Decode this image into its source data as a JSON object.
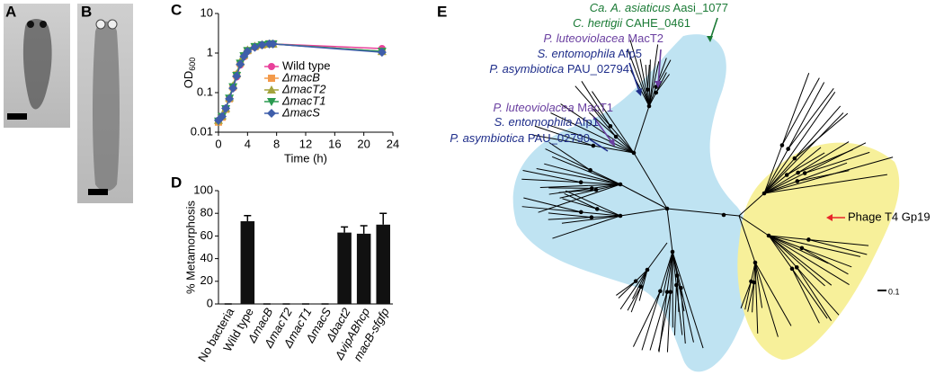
{
  "panels": {
    "a": "A",
    "b": "B",
    "c": "C",
    "d": "D",
    "e": "E"
  },
  "chart_data": [
    {
      "type": "line",
      "log_scale": "y",
      "ylabel": "OD",
      "ylabel_sub": "600",
      "xlabel": "Time (h)",
      "x": [
        0,
        0.5,
        1,
        1.5,
        2,
        2.5,
        3,
        3.5,
        4,
        5,
        6,
        7,
        7.5,
        22.5
      ],
      "xlim": [
        0,
        24
      ],
      "xticks": [
        0,
        4,
        8,
        12,
        16,
        20,
        24
      ],
      "ylim": [
        0.01,
        10
      ],
      "yticks": [
        0.01,
        0.1,
        1,
        10
      ],
      "series": [
        {
          "name": "Wild type",
          "color": "#e8409a",
          "marker": "circle",
          "values": [
            0.02,
            0.025,
            0.04,
            0.07,
            0.13,
            0.25,
            0.5,
            0.8,
            1.1,
            1.4,
            1.6,
            1.7,
            1.7,
            1.3
          ]
        },
        {
          "name": "ΔmacB",
          "color": "#f39a4a",
          "marker": "square",
          "values": [
            0.018,
            0.024,
            0.038,
            0.07,
            0.14,
            0.28,
            0.55,
            0.85,
            1.15,
            1.45,
            1.6,
            1.7,
            1.7,
            1.1
          ]
        },
        {
          "name": "ΔmacT2",
          "color": "#a3a33c",
          "marker": "triangle-up",
          "values": [
            0.02,
            0.026,
            0.04,
            0.075,
            0.15,
            0.3,
            0.6,
            0.9,
            1.2,
            1.5,
            1.65,
            1.7,
            1.7,
            1.1
          ]
        },
        {
          "name": "ΔmacT1",
          "color": "#2a9a50",
          "marker": "triangle-down",
          "values": [
            0.019,
            0.025,
            0.039,
            0.072,
            0.14,
            0.27,
            0.55,
            0.85,
            1.15,
            1.45,
            1.6,
            1.7,
            1.7,
            1.1
          ]
        },
        {
          "name": "ΔmacS",
          "color": "#3f5eaa",
          "marker": "diamond",
          "values": [
            0.02,
            0.025,
            0.04,
            0.07,
            0.13,
            0.26,
            0.52,
            0.82,
            1.1,
            1.4,
            1.6,
            1.7,
            1.7,
            1.05
          ]
        }
      ]
    },
    {
      "type": "bar",
      "ylabel": "% Metamorphosis",
      "color": "#111111",
      "categories": [
        "No bacteria",
        "Wild type",
        "ΔmacB",
        "ΔmacT2",
        "ΔmacT1",
        "ΔmacS",
        "Δbact2",
        "ΔvipABhcp",
        "macB-sfgfp"
      ],
      "italic": [
        false,
        false,
        true,
        true,
        true,
        true,
        true,
        true,
        true
      ],
      "values": [
        0,
        73,
        0,
        0,
        0,
        0,
        63,
        62,
        70
      ],
      "errors": [
        0,
        5,
        0,
        0,
        0,
        0,
        5,
        7,
        10
      ],
      "ylim": [
        0,
        100
      ],
      "yticks": [
        0,
        20,
        40,
        60,
        80,
        100
      ]
    }
  ],
  "tree": {
    "labels": [
      {
        "species": "Ca. A. asiaticus",
        "gene": "Aasi_1077",
        "color": "#1a7a35"
      },
      {
        "species": "C. hertigii",
        "gene": "CAHE_0461",
        "color": "#1a7a35"
      },
      {
        "species": "P. luteoviolacea",
        "gene": "MacT2",
        "color": "#6a3fa0"
      },
      {
        "species": "S. entomophila",
        "gene": "Afp5",
        "color": "#1e2d8a"
      },
      {
        "species": "P. asymbiotica",
        "gene": "PAU_02794",
        "color": "#1e2d8a"
      },
      {
        "species": "P. luteoviolacea",
        "gene": "MacT1",
        "color": "#6a3fa0"
      },
      {
        "species": "S. entomophila",
        "gene": "Afp1",
        "color": "#1e2d8a"
      },
      {
        "species": "P. asymbiotica",
        "gene": "PAU_02790",
        "color": "#1e2d8a"
      }
    ],
    "phage": "Phage T4 Gp19",
    "phage_color": "#e8262a",
    "scale": "0.1"
  }
}
